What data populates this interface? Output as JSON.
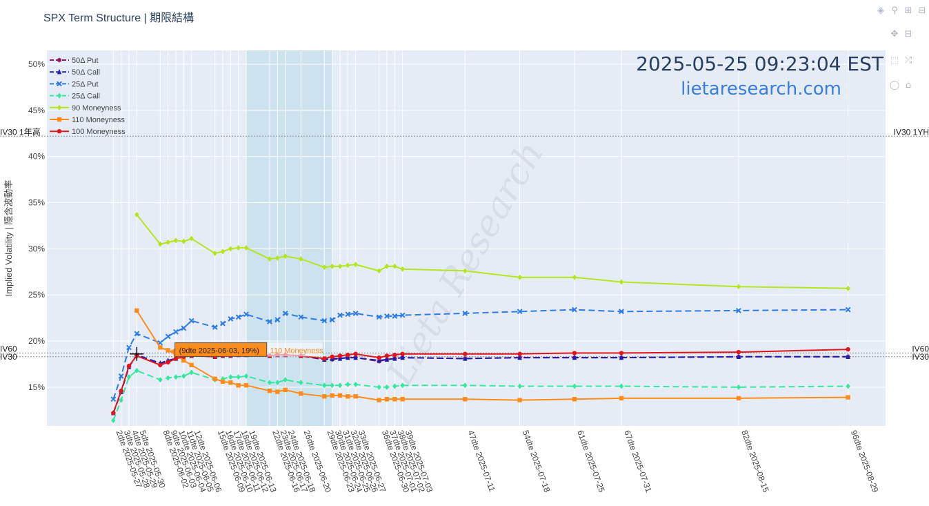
{
  "page": {
    "title": "SPX Term Structure | 期限結構",
    "timestamp": "2025-05-25 09:23:04 EST",
    "site": "lietaresearch.com",
    "watermark": "Lieta Research"
  },
  "toolbar": {
    "buttons": [
      {
        "name": "camera-icon",
        "glyph": "📷"
      },
      {
        "name": "zoom-icon",
        "glyph": "🔍"
      },
      {
        "name": "zoom-in-icon",
        "glyph": "+"
      },
      {
        "name": "zoom-out-icon",
        "glyph": "−"
      },
      {
        "name": "pan-icon",
        "glyph": "✥"
      },
      {
        "name": "box-select-icon",
        "glyph": "⬚"
      },
      {
        "name": "lasso-icon",
        "glyph": "◌"
      },
      {
        "name": "autoscale-icon",
        "glyph": "⤢"
      },
      {
        "name": "reset-icon",
        "glyph": "⌂"
      },
      {
        "name": "hover-icon",
        "glyph": "💬"
      }
    ]
  },
  "tooltip": {
    "text": "(9dte 2025-06-03, 19%)",
    "series": "110 Moneyness"
  },
  "chart_data": {
    "type": "line",
    "ylabel": "Implied Volatility | 隱含波動率",
    "xlabel": "",
    "ylim": [
      10.8,
      51.5
    ],
    "xlim": [
      -6.5,
      100.8
    ],
    "yticks": [
      15,
      20,
      25,
      30,
      35,
      40,
      45,
      50
    ],
    "ytick_labels": [
      "15%",
      "20%",
      "25%",
      "30%",
      "35%",
      "40%",
      "45%",
      "50%"
    ],
    "grid": true,
    "legend_position": "top-left",
    "x_dte": [
      2,
      3,
      4,
      5,
      8,
      9,
      10,
      11,
      12,
      15,
      16,
      17,
      18,
      19,
      22,
      23,
      24,
      26,
      29,
      30,
      31,
      32,
      33,
      36,
      37,
      38,
      39,
      47,
      54,
      61,
      67,
      82,
      96
    ],
    "x_labels": [
      "2dte 2025-05-27",
      "3dte 2025-05-28",
      "4dte 2025-05-29",
      "5dte 2025-05-30",
      "8dte 2025-06-02",
      "9dte 2025-06-03",
      "10dte 2025-06-04",
      "11dte 2025-06-05",
      "12dte 2025-06-06",
      "15dte 2025-06-09",
      "16dte 2025-06-10",
      "17dte 2025-06-11",
      "18dte 2025-06-12",
      "19dte 2025-06-13",
      "22dte 2025-06-16",
      "23dte 2025-06-17",
      "24dte 2025-06-18",
      "26dte 2025-06-20",
      "29dte 2025-06-23",
      "30dte 2025-06-24",
      "31dte 2025-06-25",
      "32dte 2025-06-26",
      "33dte 2025-06-27",
      "36dte 2025-06-30",
      "37dte 2025-07-01",
      "38dte 2025-07-02",
      "39dte 2025-07-03",
      "47dte 2025-07-11",
      "54dte 2025-07-18",
      "61dte 2025-07-25",
      "67dte 2025-07-31",
      "82dte 2025-08-15",
      "96dte 2025-08-29"
    ],
    "shaded_region": [
      19,
      30
    ],
    "reference_lines": [
      {
        "name": "IV30 1年高",
        "right_label": "IV30 1YH",
        "value": 42.2
      },
      {
        "name": "IV60",
        "right_label": "IV60",
        "value": 18.7
      },
      {
        "name": "IV30",
        "right_label": "IV30",
        "value": 18.3
      }
    ],
    "series": [
      {
        "name": "50Δ Put",
        "color": "#8B1A5C",
        "dash": true,
        "marker": "star",
        "values": [
          12.2,
          14.5,
          17.2,
          18.5,
          17.5,
          17.8,
          18.1,
          18.3,
          18.4,
          18.3,
          18.4,
          18.4,
          18.5,
          18.5,
          18.4,
          18.5,
          18.5,
          18.4,
          18.0,
          18.0,
          18.1,
          18.2,
          18.2,
          17.8,
          18.0,
          18.1,
          18.2,
          18.1,
          18.2,
          18.2,
          18.2,
          18.3,
          18.3
        ]
      },
      {
        "name": "50Δ Call",
        "color": "#1F1FAF",
        "dash": true,
        "marker": "triangle",
        "values": [
          12.2,
          14.5,
          17.2,
          18.5,
          17.6,
          17.9,
          18.1,
          18.3,
          18.4,
          18.3,
          18.4,
          18.4,
          18.5,
          18.5,
          18.4,
          18.5,
          18.5,
          18.4,
          18.0,
          18.1,
          18.1,
          18.2,
          18.2,
          17.9,
          18.0,
          18.1,
          18.2,
          18.1,
          18.2,
          18.2,
          18.2,
          18.3,
          18.3
        ]
      },
      {
        "name": "25Δ Put",
        "color": "#2D7BE6",
        "dash": true,
        "marker": "x",
        "values": [
          13.7,
          16.2,
          19.3,
          20.8,
          19.8,
          20.5,
          21.0,
          21.4,
          22.2,
          21.5,
          21.9,
          22.4,
          22.6,
          22.9,
          22.1,
          22.3,
          23.0,
          22.6,
          22.2,
          22.3,
          22.8,
          22.9,
          23.0,
          22.6,
          22.7,
          22.7,
          22.8,
          23.0,
          23.2,
          23.4,
          23.2,
          23.3,
          23.4
        ]
      },
      {
        "name": "25Δ Call",
        "color": "#34E8A0",
        "dash": true,
        "marker": "diamond",
        "values": [
          11.4,
          13.6,
          16.1,
          16.8,
          15.8,
          16.0,
          16.1,
          16.2,
          16.6,
          15.8,
          15.9,
          16.1,
          16.1,
          16.2,
          15.5,
          15.5,
          15.8,
          15.5,
          15.2,
          15.2,
          15.2,
          15.3,
          15.3,
          15.0,
          15.0,
          15.1,
          15.2,
          15.2,
          15.1,
          15.1,
          15.1,
          15.0,
          15.1
        ]
      },
      {
        "name": "90 Moneyness",
        "color": "#B4E61E",
        "dash": false,
        "marker": "diamond",
        "values": [
          null,
          null,
          null,
          33.7,
          30.5,
          30.7,
          30.9,
          30.8,
          31.1,
          29.5,
          29.7,
          30.0,
          30.1,
          30.1,
          28.9,
          29.0,
          29.2,
          28.9,
          28.0,
          28.1,
          28.1,
          28.2,
          28.3,
          27.6,
          28.1,
          28.1,
          27.8,
          27.6,
          26.9,
          26.9,
          26.4,
          25.9,
          25.7
        ]
      },
      {
        "name": "110 Moneyness",
        "color": "#FF8C1A",
        "dash": false,
        "marker": "square",
        "values": [
          null,
          null,
          null,
          23.3,
          19.3,
          19.0,
          18.5,
          17.9,
          17.4,
          15.9,
          15.6,
          15.5,
          15.2,
          15.2,
          14.6,
          14.5,
          14.7,
          14.3,
          14.0,
          14.1,
          14.1,
          14.0,
          14.0,
          13.6,
          13.7,
          13.7,
          13.7,
          13.7,
          13.6,
          13.7,
          13.8,
          13.8,
          13.9
        ]
      },
      {
        "name": "100 Moneyness",
        "color": "#E0161E",
        "dash": false,
        "marker": "circle",
        "values": [
          12.2,
          14.6,
          17.3,
          18.4,
          17.4,
          17.7,
          18.1,
          18.3,
          18.4,
          18.3,
          18.4,
          18.4,
          18.5,
          18.5,
          18.4,
          18.5,
          18.5,
          18.4,
          18.1,
          18.3,
          18.4,
          18.5,
          18.6,
          18.2,
          18.4,
          18.5,
          18.6,
          18.6,
          18.6,
          18.7,
          18.7,
          18.8,
          19.1
        ]
      }
    ]
  }
}
